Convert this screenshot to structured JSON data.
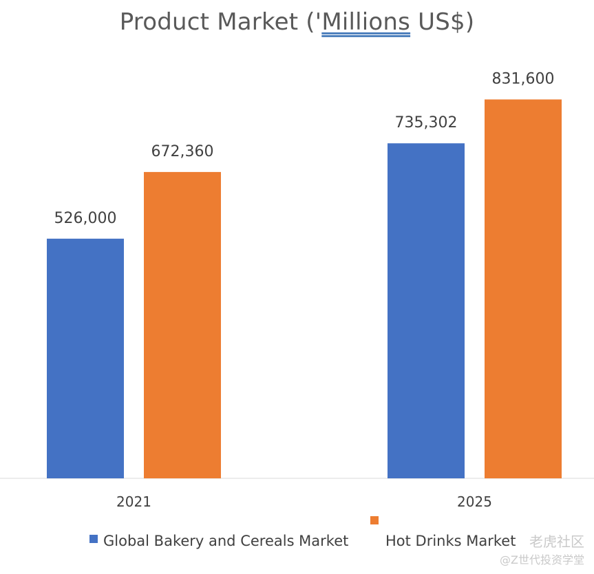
{
  "chart_data": {
    "type": "bar",
    "title_prefix": "Product Market ('",
    "title_underlined": "Millions",
    "title_suffix": " US$)",
    "categories": [
      "2021",
      "2025"
    ],
    "series": [
      {
        "name": "Global Bakery and Cereals Market",
        "values": [
          526000,
          735302
        ],
        "labels": [
          "526,000",
          "735,302"
        ],
        "color": "#4472c4"
      },
      {
        "name": "Hot Drinks Market",
        "values": [
          672360,
          831600
        ],
        "labels": [
          "672,360",
          "831,600"
        ],
        "color": "#ed7d31"
      }
    ],
    "ylim": [
      0,
      1000000
    ],
    "grid": false,
    "legend_position": "bottom"
  },
  "watermark": {
    "line1": "老虎社区",
    "line2": "@Z世代投资学堂"
  }
}
